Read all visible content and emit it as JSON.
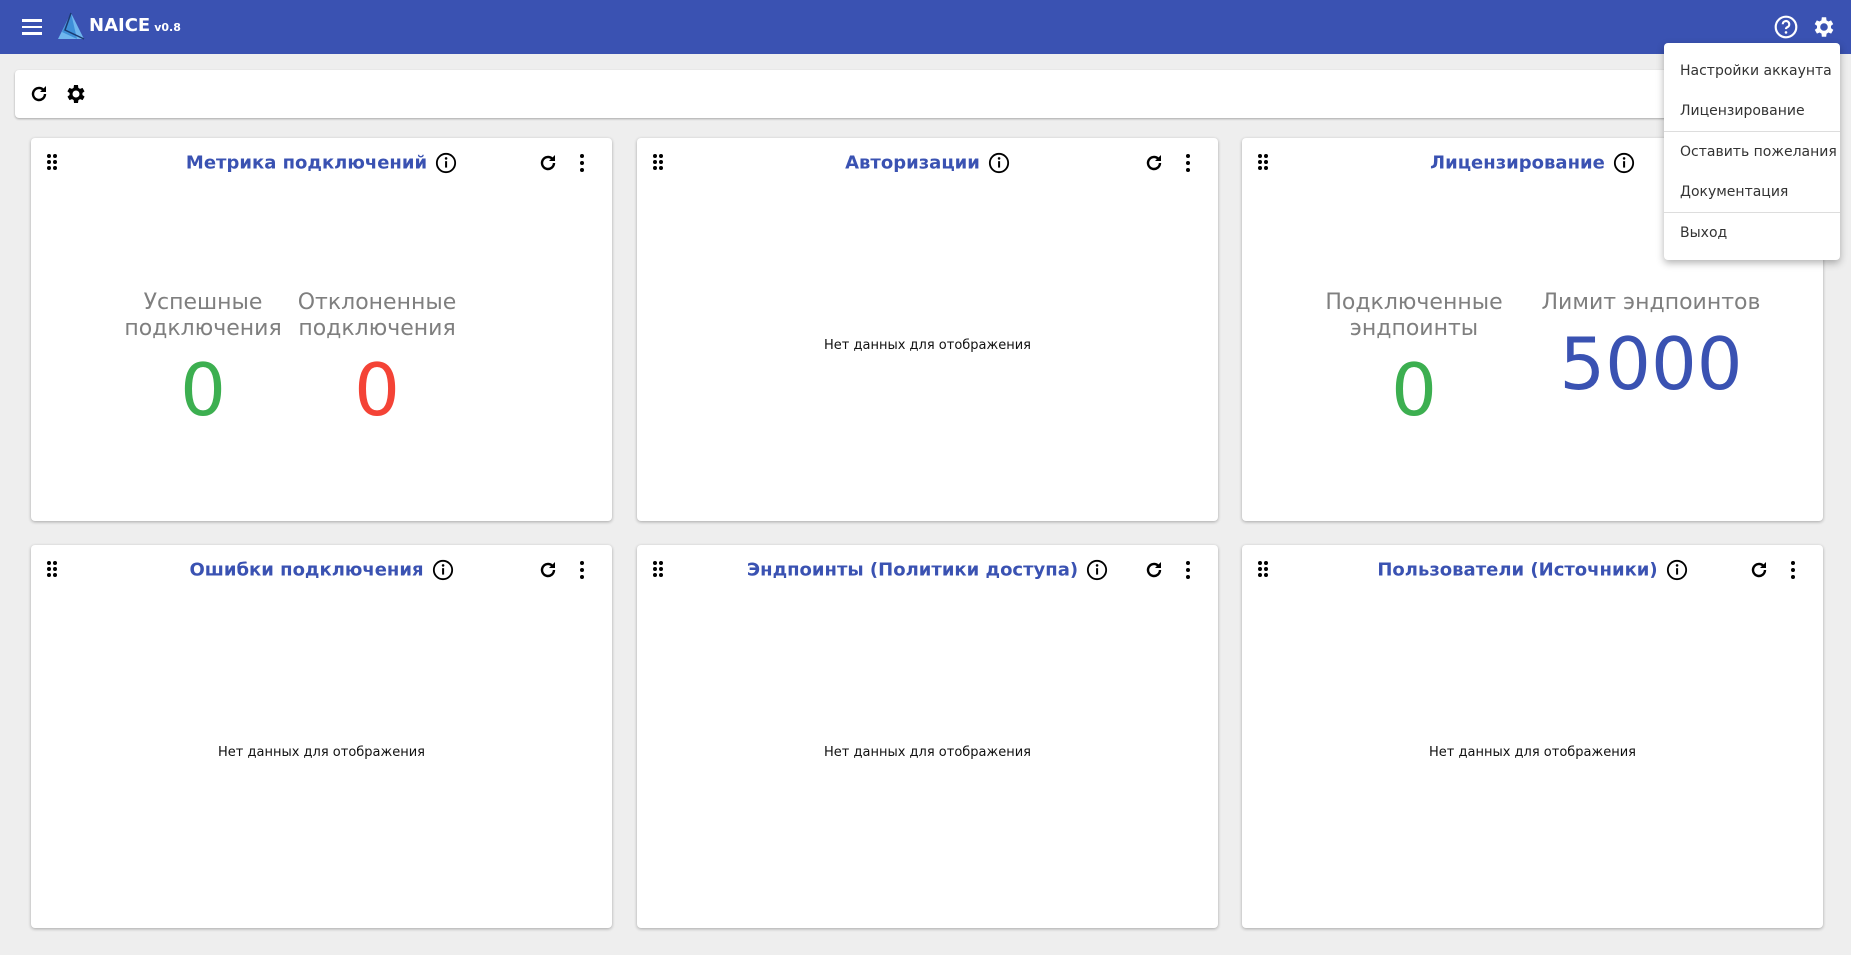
{
  "header": {
    "brand": "NAICE",
    "version": "v0.8",
    "icons": [
      "menu-icon",
      "help-icon",
      "gear-icon"
    ],
    "color": "#3a52b2"
  },
  "toolbar": {
    "icons": [
      "refresh-icon",
      "gear-icon"
    ]
  },
  "empty_text": "Нет данных для отображения",
  "cards": [
    {
      "title": "Метрика подключений",
      "metrics": [
        {
          "label": "Успешные подключения",
          "value": "0",
          "color": "#3caf50"
        },
        {
          "label": "Отклоненные подключения",
          "value": "0",
          "color": "#f44336"
        }
      ]
    },
    {
      "title": "Авторизации"
    },
    {
      "title": "Лицензирование",
      "metrics": [
        {
          "label": "Подключенные эндпоинты",
          "value": "0",
          "color": "#3caf50"
        },
        {
          "label": "Лимит эндпоинтов",
          "value": "5000",
          "color": "#3a52b2"
        }
      ]
    },
    {
      "title": "Ошибки подключения"
    },
    {
      "title": "Эндпоинты (Политики доступа)"
    },
    {
      "title": "Пользователи (Источники)"
    }
  ],
  "dropdown": {
    "items": [
      "Настройки аккаунта",
      "Лицензирование",
      "Оставить пожелания",
      "Документация",
      "Выход"
    ]
  }
}
